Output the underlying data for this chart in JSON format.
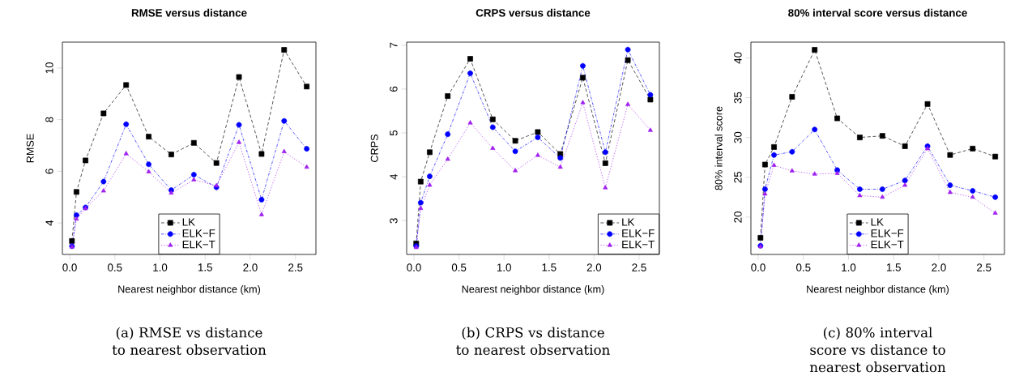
{
  "chart_data": [
    {
      "type": "line",
      "title": "RMSE versus distance",
      "xlabel": "Nearest neighbor distance (km)",
      "ylabel": "RMSE",
      "x": [
        0.025,
        0.075,
        0.175,
        0.375,
        0.625,
        0.875,
        1.125,
        1.375,
        1.625,
        1.875,
        2.125,
        2.375,
        2.625
      ],
      "series": [
        {
          "name": "LK",
          "color": "#000000",
          "marker": "square",
          "line_style": "dashed",
          "values": [
            3.3,
            5.2,
            6.42,
            8.24,
            9.34,
            7.34,
            6.65,
            7.1,
            6.32,
            9.65,
            6.67,
            10.7,
            9.28
          ]
        },
        {
          "name": "ELK−F",
          "color": "#0000ff",
          "marker": "circle",
          "line_style": "dashdot",
          "values": [
            3.1,
            4.3,
            4.6,
            5.6,
            7.82,
            6.27,
            5.27,
            5.87,
            5.38,
            7.8,
            4.9,
            7.95,
            6.87
          ]
        },
        {
          "name": "ELK−T",
          "color": "#a020f0",
          "marker": "triangle",
          "line_style": "dotted",
          "values": [
            3.07,
            4.15,
            4.56,
            5.24,
            6.68,
            5.98,
            5.16,
            5.67,
            5.44,
            7.12,
            4.32,
            6.76,
            6.16
          ]
        }
      ],
      "xlim": [
        -0.081,
        2.727
      ],
      "ylim": [
        2.78,
        11.0
      ],
      "xticks": [
        {
          "value": 0,
          "label": "0.0"
        },
        0.5,
        {
          "value": 1,
          "label": "1.0"
        },
        1.5,
        {
          "value": 2,
          "label": "2.0"
        },
        2.5
      ],
      "yticks": [
        4,
        6,
        8,
        10
      ],
      "legend": "bottom",
      "annotations": [
        "(a) RMSE vs distance to nearest observation"
      ]
    },
    {
      "type": "line",
      "title": "CRPS versus distance",
      "xlabel": "Nearest neighbor distance (km)",
      "ylabel": "CRPS",
      "x": [
        0.025,
        0.075,
        0.175,
        0.375,
        0.625,
        0.875,
        1.125,
        1.375,
        1.625,
        1.875,
        2.125,
        2.375,
        2.625
      ],
      "series": [
        {
          "name": "LK",
          "color": "#000000",
          "marker": "square",
          "line_style": "dashed",
          "values": [
            2.48,
            3.89,
            4.56,
            5.84,
            6.69,
            5.31,
            4.82,
            5.02,
            4.52,
            6.26,
            4.31,
            6.66,
            5.76
          ]
        },
        {
          "name": "ELK−F",
          "color": "#0000ff",
          "marker": "circle",
          "line_style": "dashdot",
          "values": [
            2.42,
            3.41,
            4.01,
            4.97,
            6.36,
            5.13,
            4.58,
            4.9,
            4.43,
            6.53,
            4.56,
            6.9,
            5.87
          ]
        },
        {
          "name": "ELK−T",
          "color": "#a020f0",
          "marker": "triangle",
          "line_style": "dotted",
          "values": [
            2.39,
            3.28,
            3.81,
            4.4,
            5.23,
            4.65,
            4.14,
            4.49,
            4.22,
            5.69,
            3.75,
            5.65,
            5.06
          ]
        }
      ],
      "xlim": [
        -0.081,
        2.725
      ],
      "ylim": [
        2.23,
        7.07
      ],
      "xticks": [
        {
          "value": 0,
          "label": "0.0"
        },
        0.5,
        {
          "value": 1,
          "label": "1.0"
        },
        1.5,
        {
          "value": 2,
          "label": "2.0"
        },
        2.5
      ],
      "yticks": [
        3,
        4,
        5,
        6,
        7
      ],
      "legend": "bottom right",
      "annotations": [
        "(b) CRPS vs distance to nearest observation"
      ]
    },
    {
      "type": "line",
      "title": "80% interval score versus distance",
      "xlabel": "Nearest neighbor distance (km)",
      "ylabel": "80% interval score",
      "x": [
        0.025,
        0.075,
        0.175,
        0.375,
        0.625,
        0.875,
        1.125,
        1.375,
        1.625,
        1.875,
        2.125,
        2.375,
        2.625
      ],
      "series": [
        {
          "name": "LK",
          "color": "#000000",
          "marker": "square",
          "line_style": "dashed",
          "values": [
            17.4,
            26.6,
            28.8,
            35.1,
            41.0,
            32.4,
            30.0,
            30.2,
            28.9,
            34.2,
            27.8,
            28.6,
            27.6
          ]
        },
        {
          "name": "ELK−F",
          "color": "#0000ff",
          "marker": "circle",
          "line_style": "dashdot",
          "values": [
            16.4,
            23.5,
            27.8,
            28.2,
            31.0,
            25.9,
            23.5,
            23.5,
            24.6,
            28.9,
            24.0,
            23.3,
            22.5
          ]
        },
        {
          "name": "ELK−T",
          "color": "#a020f0",
          "marker": "triangle",
          "line_style": "dotted",
          "values": [
            16.3,
            22.9,
            26.5,
            25.8,
            25.4,
            25.5,
            22.7,
            22.5,
            24.0,
            28.6,
            23.1,
            22.5,
            20.5
          ]
        }
      ],
      "xlim": [
        -0.081,
        2.727
      ],
      "ylim": [
        15.31,
        41.97
      ],
      "xticks": [
        {
          "value": 0,
          "label": "0.0"
        },
        0.5,
        {
          "value": 1,
          "label": "1.0"
        },
        1.5,
        {
          "value": 2,
          "label": "2.0"
        },
        2.5
      ],
      "yticks": [
        20,
        25,
        30,
        35,
        40
      ],
      "legend": "bottom",
      "annotations": [
        "(c) 80% interval score vs distance to nearest observation"
      ]
    }
  ]
}
